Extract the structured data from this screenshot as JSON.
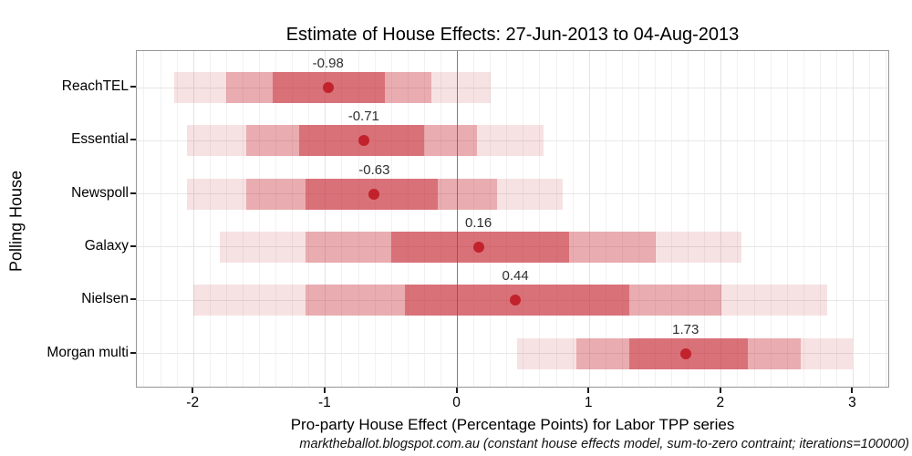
{
  "title": "Estimate of House Effects: 27-Jun-2013 to 04-Aug-2013",
  "x_axis": {
    "label": "Pro-party House Effect (Percentage Points) for Labor TPP series",
    "tick_labels": [
      "-2",
      "-1",
      "0",
      "1",
      "2",
      "3"
    ],
    "tick_values": [
      -2,
      -1,
      0,
      1,
      2,
      3
    ],
    "range": [
      -2.43,
      3.28
    ],
    "minor_step": 0.125
  },
  "y_axis": {
    "label": "Polling House"
  },
  "caption": "marktheballot.blogspot.com.au (constant house effects model, sum-to-zero contraint; iterations=100000)",
  "chart_data": {
    "type": "scatter",
    "subtype": "dot-with-nested-interval-bars",
    "title": "Estimate of House Effects: 27-Jun-2013 to 04-Aug-2013",
    "xlabel": "Pro-party House Effect (Percentage Points) for Labor TPP series",
    "ylabel": "Polling House",
    "categories": [
      "ReachTEL",
      "Essential",
      "Newspoll",
      "Galaxy",
      "Nielsen",
      "Morgan multi"
    ],
    "estimates": [
      -0.98,
      -0.71,
      -0.63,
      0.16,
      0.44,
      1.73
    ],
    "estimate_labels": [
      "-0.98",
      "-0.71",
      "-0.63",
      "0.16",
      "0.44",
      "1.73"
    ],
    "intervals_inner": [
      [
        -1.4,
        -0.55
      ],
      [
        -1.2,
        -0.25
      ],
      [
        -1.15,
        -0.15
      ],
      [
        -0.5,
        0.85
      ],
      [
        -0.4,
        1.3
      ],
      [
        1.3,
        2.2
      ]
    ],
    "intervals_middle": [
      [
        -1.75,
        -0.2
      ],
      [
        -1.6,
        0.15
      ],
      [
        -1.6,
        0.3
      ],
      [
        -1.15,
        1.5
      ],
      [
        -1.15,
        2.0
      ],
      [
        0.9,
        2.6
      ]
    ],
    "intervals_outer": [
      [
        -2.15,
        0.25
      ],
      [
        -2.05,
        0.65
      ],
      [
        -2.05,
        0.8
      ],
      [
        -1.8,
        2.15
      ],
      [
        -2.0,
        2.8
      ],
      [
        0.45,
        3.0
      ]
    ],
    "xlim": [
      -2.43,
      3.28
    ],
    "grid": "on",
    "legend": "none",
    "zero_reference_line": 0
  },
  "colors": {
    "bar_outer": "rgba(201,48,60,0.14)",
    "bar_middle": "rgba(201,48,60,0.30)",
    "bar_inner": "rgba(201,48,60,0.48)",
    "dot": "#c1222b",
    "zero_line": "#7f7f7f",
    "panel_border": "#969696",
    "gridline_minor": "#f1f1f1",
    "gridline_major": "#e3e3e3",
    "gridline_horizontal": "#e7e7e7",
    "estimate_label": "#2e2e2e",
    "text": "#000000"
  }
}
